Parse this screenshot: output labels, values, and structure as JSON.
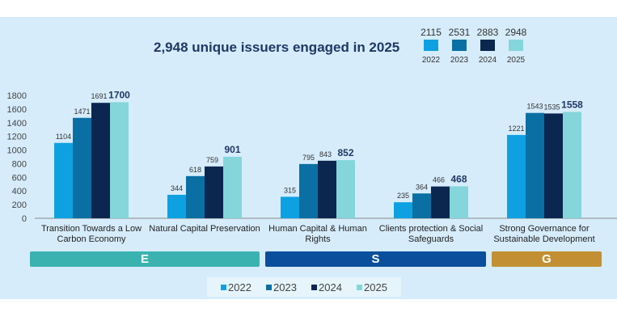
{
  "chart_data": {
    "type": "bar",
    "title": "2,948 unique issuers engaged in 2025",
    "categories": [
      "Transition Towards a Low Carbon Economy",
      "Natural Capital Preservation",
      "Human Capital & Human Rights",
      "Clients protection & Social Safeguards",
      "Strong Governance for Sustainable Development"
    ],
    "series": [
      {
        "name": "2022",
        "color": "#0ea1e2",
        "values": [
          1104,
          344,
          315,
          235,
          1221
        ]
      },
      {
        "name": "2023",
        "color": "#0a6fa3",
        "values": [
          1471,
          618,
          795,
          364,
          1543
        ]
      },
      {
        "name": "2024",
        "color": "#0b2750",
        "values": [
          1691,
          759,
          843,
          466,
          1535
        ]
      },
      {
        "name": "2025",
        "color": "#84d6da",
        "values": [
          1700,
          901,
          852,
          468,
          1558
        ]
      }
    ],
    "yticks": [
      0,
      200,
      400,
      600,
      800,
      1000,
      1200,
      1400,
      1600,
      1800
    ],
    "ylim": [
      0,
      1800
    ],
    "grid": false,
    "legend_position": "bottom",
    "totals": [
      {
        "year": "2022",
        "total": "2115"
      },
      {
        "year": "2023",
        "total": "2531"
      },
      {
        "year": "2024",
        "total": "2883"
      },
      {
        "year": "2025",
        "total": "2948"
      }
    ],
    "pillars": [
      {
        "label": "E",
        "color": "#3ab3b0"
      },
      {
        "label": "S",
        "color": "#0a4f9c"
      },
      {
        "label": "G",
        "color": "#c28f33"
      }
    ]
  }
}
